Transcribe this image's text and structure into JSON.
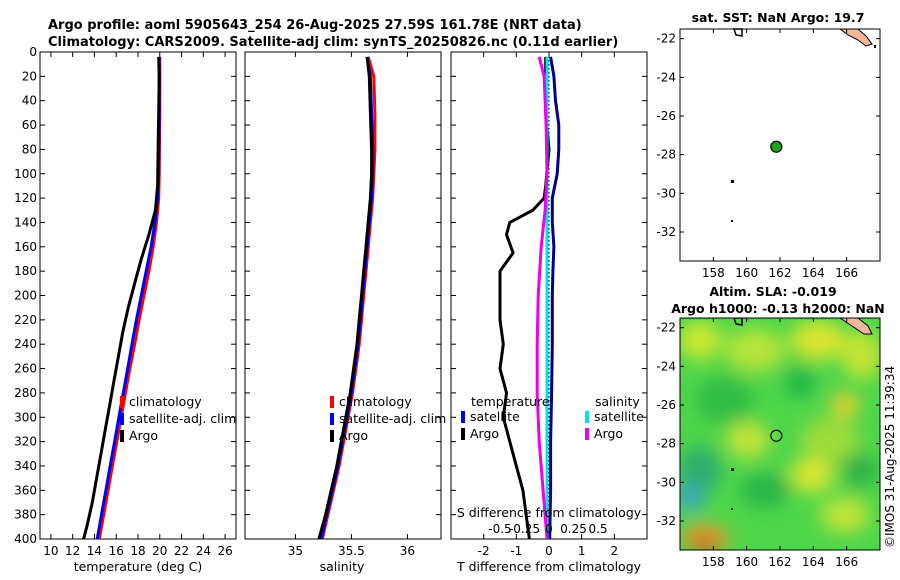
{
  "header": {
    "title_line1": "Argo profile: aoml 5905643_254 26-Aug-2025 27.59S 161.78E (NRT data)",
    "title_line2": "Climatology: CARS2009. Satellite-adj clim: synTS_20250826.nc (0.11d earlier)"
  },
  "stamp": "©IMOS 31-Aug-2025 11:39:34",
  "colors": {
    "climatology": "#ff0000",
    "satellite": "#0000ff",
    "argo": "#000000",
    "temp_sat": "#00008b",
    "sal_sat": "#00e5ee",
    "sal_argo": "#ee00ee",
    "sst_dot": "#1fa31f",
    "land": "#f0b79a"
  },
  "chart_data": [
    {
      "id": "temperature",
      "type": "line",
      "xlabel": "temperature (deg C)",
      "ylabel": "",
      "xlim": [
        9,
        27
      ],
      "ylim": [
        400,
        0
      ],
      "x_ticks": [
        10,
        12,
        14,
        16,
        18,
        20,
        22,
        24,
        26
      ],
      "x_tick_labels": [
        "10",
        "12",
        "14",
        "16",
        "18",
        "20",
        "22",
        "24",
        "26"
      ],
      "y_ticks": [
        0,
        20,
        40,
        60,
        80,
        100,
        120,
        140,
        160,
        180,
        200,
        220,
        240,
        260,
        280,
        300,
        320,
        340,
        360,
        380,
        400
      ],
      "y_tick_labels": [
        "0",
        "20",
        "40",
        "60",
        "80",
        "100",
        "120",
        "140",
        "160",
        "180",
        "200",
        "220",
        "240",
        "260",
        "280",
        "300",
        "320",
        "340",
        "360",
        "380",
        "400"
      ],
      "legend": {
        "position": "lower-right",
        "entries": [
          "climatology",
          "satellite-adj. clim",
          "Argo"
        ]
      },
      "series": [
        {
          "name": "climatology",
          "color": "#ff0000",
          "depth": [
            4,
            50,
            100,
            120,
            140,
            160,
            180,
            200,
            220,
            240,
            260,
            280,
            300,
            320,
            340,
            360,
            380,
            400
          ],
          "values": [
            20.0,
            20.0,
            19.95,
            19.9,
            19.7,
            19.4,
            19.0,
            18.55,
            18.1,
            17.7,
            17.25,
            16.85,
            16.45,
            16.05,
            15.65,
            15.25,
            14.85,
            14.45
          ]
        },
        {
          "name": "satellite-adj. clim",
          "color": "#0000ff",
          "depth": [
            4,
            50,
            100,
            120,
            140,
            160,
            180,
            200,
            220,
            240,
            260,
            280,
            300,
            320,
            340,
            360,
            380,
            400
          ],
          "values": [
            19.95,
            19.95,
            19.9,
            19.8,
            19.55,
            19.2,
            18.75,
            18.3,
            17.85,
            17.45,
            17.05,
            16.65,
            16.25,
            15.85,
            15.45,
            15.05,
            14.65,
            14.25
          ]
        },
        {
          "name": "Argo",
          "color": "#000000",
          "depth": [
            4,
            20,
            50,
            80,
            110,
            130,
            150,
            170,
            190,
            210,
            230,
            250,
            270,
            290,
            310,
            330,
            350,
            370,
            390,
            400
          ],
          "values": [
            19.9,
            19.95,
            19.9,
            19.85,
            19.8,
            19.6,
            19.0,
            18.3,
            17.7,
            17.1,
            16.6,
            16.2,
            15.8,
            15.4,
            15.0,
            14.6,
            14.2,
            13.8,
            13.3,
            13.0
          ]
        }
      ]
    },
    {
      "id": "salinity",
      "type": "line",
      "xlabel": "salinity",
      "ylabel": "",
      "xlim": [
        34.55,
        36.3
      ],
      "ylim": [
        400,
        0
      ],
      "x_ticks": [
        35,
        35.5,
        36
      ],
      "x_tick_labels": [
        "35",
        "35.5",
        "36"
      ],
      "legend": {
        "position": "lower-right",
        "entries": [
          "climatology",
          "satellite-adj. clim",
          "Argo"
        ]
      },
      "series": [
        {
          "name": "climatology",
          "color": "#ff0000",
          "depth": [
            4,
            20,
            50,
            80,
            100,
            120,
            140,
            160,
            180,
            200,
            220,
            240,
            260,
            280,
            300,
            320,
            340,
            360,
            380,
            400
          ],
          "values": [
            35.65,
            35.7,
            35.71,
            35.71,
            35.7,
            35.69,
            35.67,
            35.65,
            35.63,
            35.61,
            35.59,
            35.57,
            35.54,
            35.51,
            35.47,
            35.43,
            35.39,
            35.34,
            35.29,
            35.24
          ]
        },
        {
          "name": "satellite-adj. clim",
          "color": "#0000ff",
          "depth": [
            4,
            20,
            50,
            80,
            100,
            120,
            140,
            160,
            180,
            200,
            220,
            240,
            260,
            280,
            300,
            320,
            340,
            360,
            380,
            400
          ],
          "values": [
            35.64,
            35.67,
            35.68,
            35.69,
            35.69,
            35.68,
            35.66,
            35.64,
            35.62,
            35.6,
            35.58,
            35.56,
            35.53,
            35.5,
            35.46,
            35.42,
            35.38,
            35.33,
            35.28,
            35.23
          ]
        },
        {
          "name": "Argo",
          "color": "#000000",
          "depth": [
            4,
            20,
            50,
            80,
            100,
            120,
            140,
            160,
            180,
            200,
            220,
            240,
            260,
            280,
            300,
            320,
            340,
            360,
            380,
            400
          ],
          "values": [
            35.64,
            35.66,
            35.67,
            35.68,
            35.68,
            35.67,
            35.65,
            35.63,
            35.61,
            35.59,
            35.57,
            35.55,
            35.52,
            35.49,
            35.45,
            35.41,
            35.37,
            35.32,
            35.27,
            35.21
          ]
        }
      ]
    },
    {
      "id": "differences",
      "type": "line",
      "xlabel": "T difference from climatology",
      "xlabel_top": "S difference from climatology",
      "xlim": [
        -3,
        3
      ],
      "ylim": [
        400,
        0
      ],
      "x_ticks": [
        -2,
        -1,
        0,
        1,
        2
      ],
      "x_tick_labels": [
        "-2",
        "-1",
        "0",
        "1",
        "2"
      ],
      "s_xlim": [
        -1,
        1
      ],
      "s_ticks": [
        -0.5,
        -0.25,
        0,
        0.25,
        0.5
      ],
      "s_tick_labels": [
        "-0.5",
        "-0.25",
        "0",
        "0.25",
        "0.5"
      ],
      "legend_left": {
        "title": "temperature",
        "entries": [
          "satellite",
          "Argo"
        ]
      },
      "legend_right": {
        "title": "salinity",
        "entries": [
          "satellite",
          "Argo"
        ]
      },
      "series": [
        {
          "name": "T satellite",
          "color": "#00008b",
          "depth": [
            4,
            20,
            40,
            60,
            80,
            100,
            120,
            140,
            160,
            180,
            200,
            240,
            280,
            320,
            360,
            400
          ],
          "values": [
            0.05,
            0.15,
            0.2,
            0.3,
            0.3,
            0.25,
            0.1,
            0.1,
            0.15,
            0.12,
            0.1,
            0.1,
            0.08,
            0.05,
            0.05,
            0.02
          ]
        },
        {
          "name": "T Argo",
          "color": "#000000",
          "depth": [
            4,
            20,
            50,
            80,
            110,
            120,
            130,
            140,
            150,
            165,
            180,
            200,
            220,
            240,
            260,
            280,
            300,
            320,
            340,
            360,
            380,
            400
          ],
          "values": [
            -0.1,
            -0.1,
            -0.1,
            0.0,
            -0.1,
            -0.15,
            -0.5,
            -1.2,
            -1.3,
            -1.1,
            -1.5,
            -1.5,
            -1.5,
            -1.4,
            -1.5,
            -1.3,
            -1.4,
            -1.2,
            -1.0,
            -0.8,
            -0.7,
            -0.6
          ]
        },
        {
          "name": "S satellite",
          "color": "#00e5ee",
          "depth": [
            4,
            100,
            200,
            300,
            400
          ],
          "values": [
            -0.02,
            -0.02,
            -0.02,
            -0.02,
            -0.02
          ]
        },
        {
          "name": "S Argo",
          "color": "#ee00ee",
          "depth": [
            4,
            20,
            60,
            100,
            130,
            160,
            200,
            240,
            280,
            320,
            360,
            400
          ],
          "values": [
            -0.1,
            -0.05,
            -0.03,
            -0.02,
            -0.04,
            -0.08,
            -0.11,
            -0.12,
            -0.12,
            -0.1,
            -0.06,
            -0.02
          ]
        }
      ]
    },
    {
      "id": "sst_map",
      "type": "scatter",
      "title": "sat. SST: NaN Argo: 19.7",
      "xlim": [
        156,
        168
      ],
      "ylim": [
        -33.5,
        -21.5
      ],
      "x_ticks": [
        158,
        160,
        162,
        164,
        166
      ],
      "x_tick_labels": [
        "158",
        "160",
        "162",
        "164",
        "166"
      ],
      "y_ticks": [
        -22,
        -24,
        -26,
        -28,
        -30,
        -32
      ],
      "y_tick_labels": [
        "-22",
        "-24",
        "-26",
        "-28",
        "-30",
        "-32"
      ],
      "points": [
        {
          "lon": 161.78,
          "lat": -27.59,
          "label": "Argo"
        }
      ]
    },
    {
      "id": "sla_map",
      "type": "heatmap",
      "title_line1": "Altim. SLA: -0.019",
      "title_line2": "Argo h1000: -0.13 h2000: NaN",
      "xlim": [
        156,
        168
      ],
      "ylim": [
        -33.5,
        -21.5
      ],
      "x_ticks": [
        158,
        160,
        162,
        164,
        166
      ],
      "x_tick_labels": [
        "158",
        "160",
        "162",
        "164",
        "166"
      ],
      "y_ticks": [
        -22,
        -24,
        -26,
        -28,
        -30,
        -32
      ],
      "y_tick_labels": [
        "-22",
        "-24",
        "-26",
        "-28",
        "-30",
        "-32"
      ],
      "points": [
        {
          "lon": 161.78,
          "lat": -27.59,
          "label": "Argo"
        }
      ]
    }
  ]
}
